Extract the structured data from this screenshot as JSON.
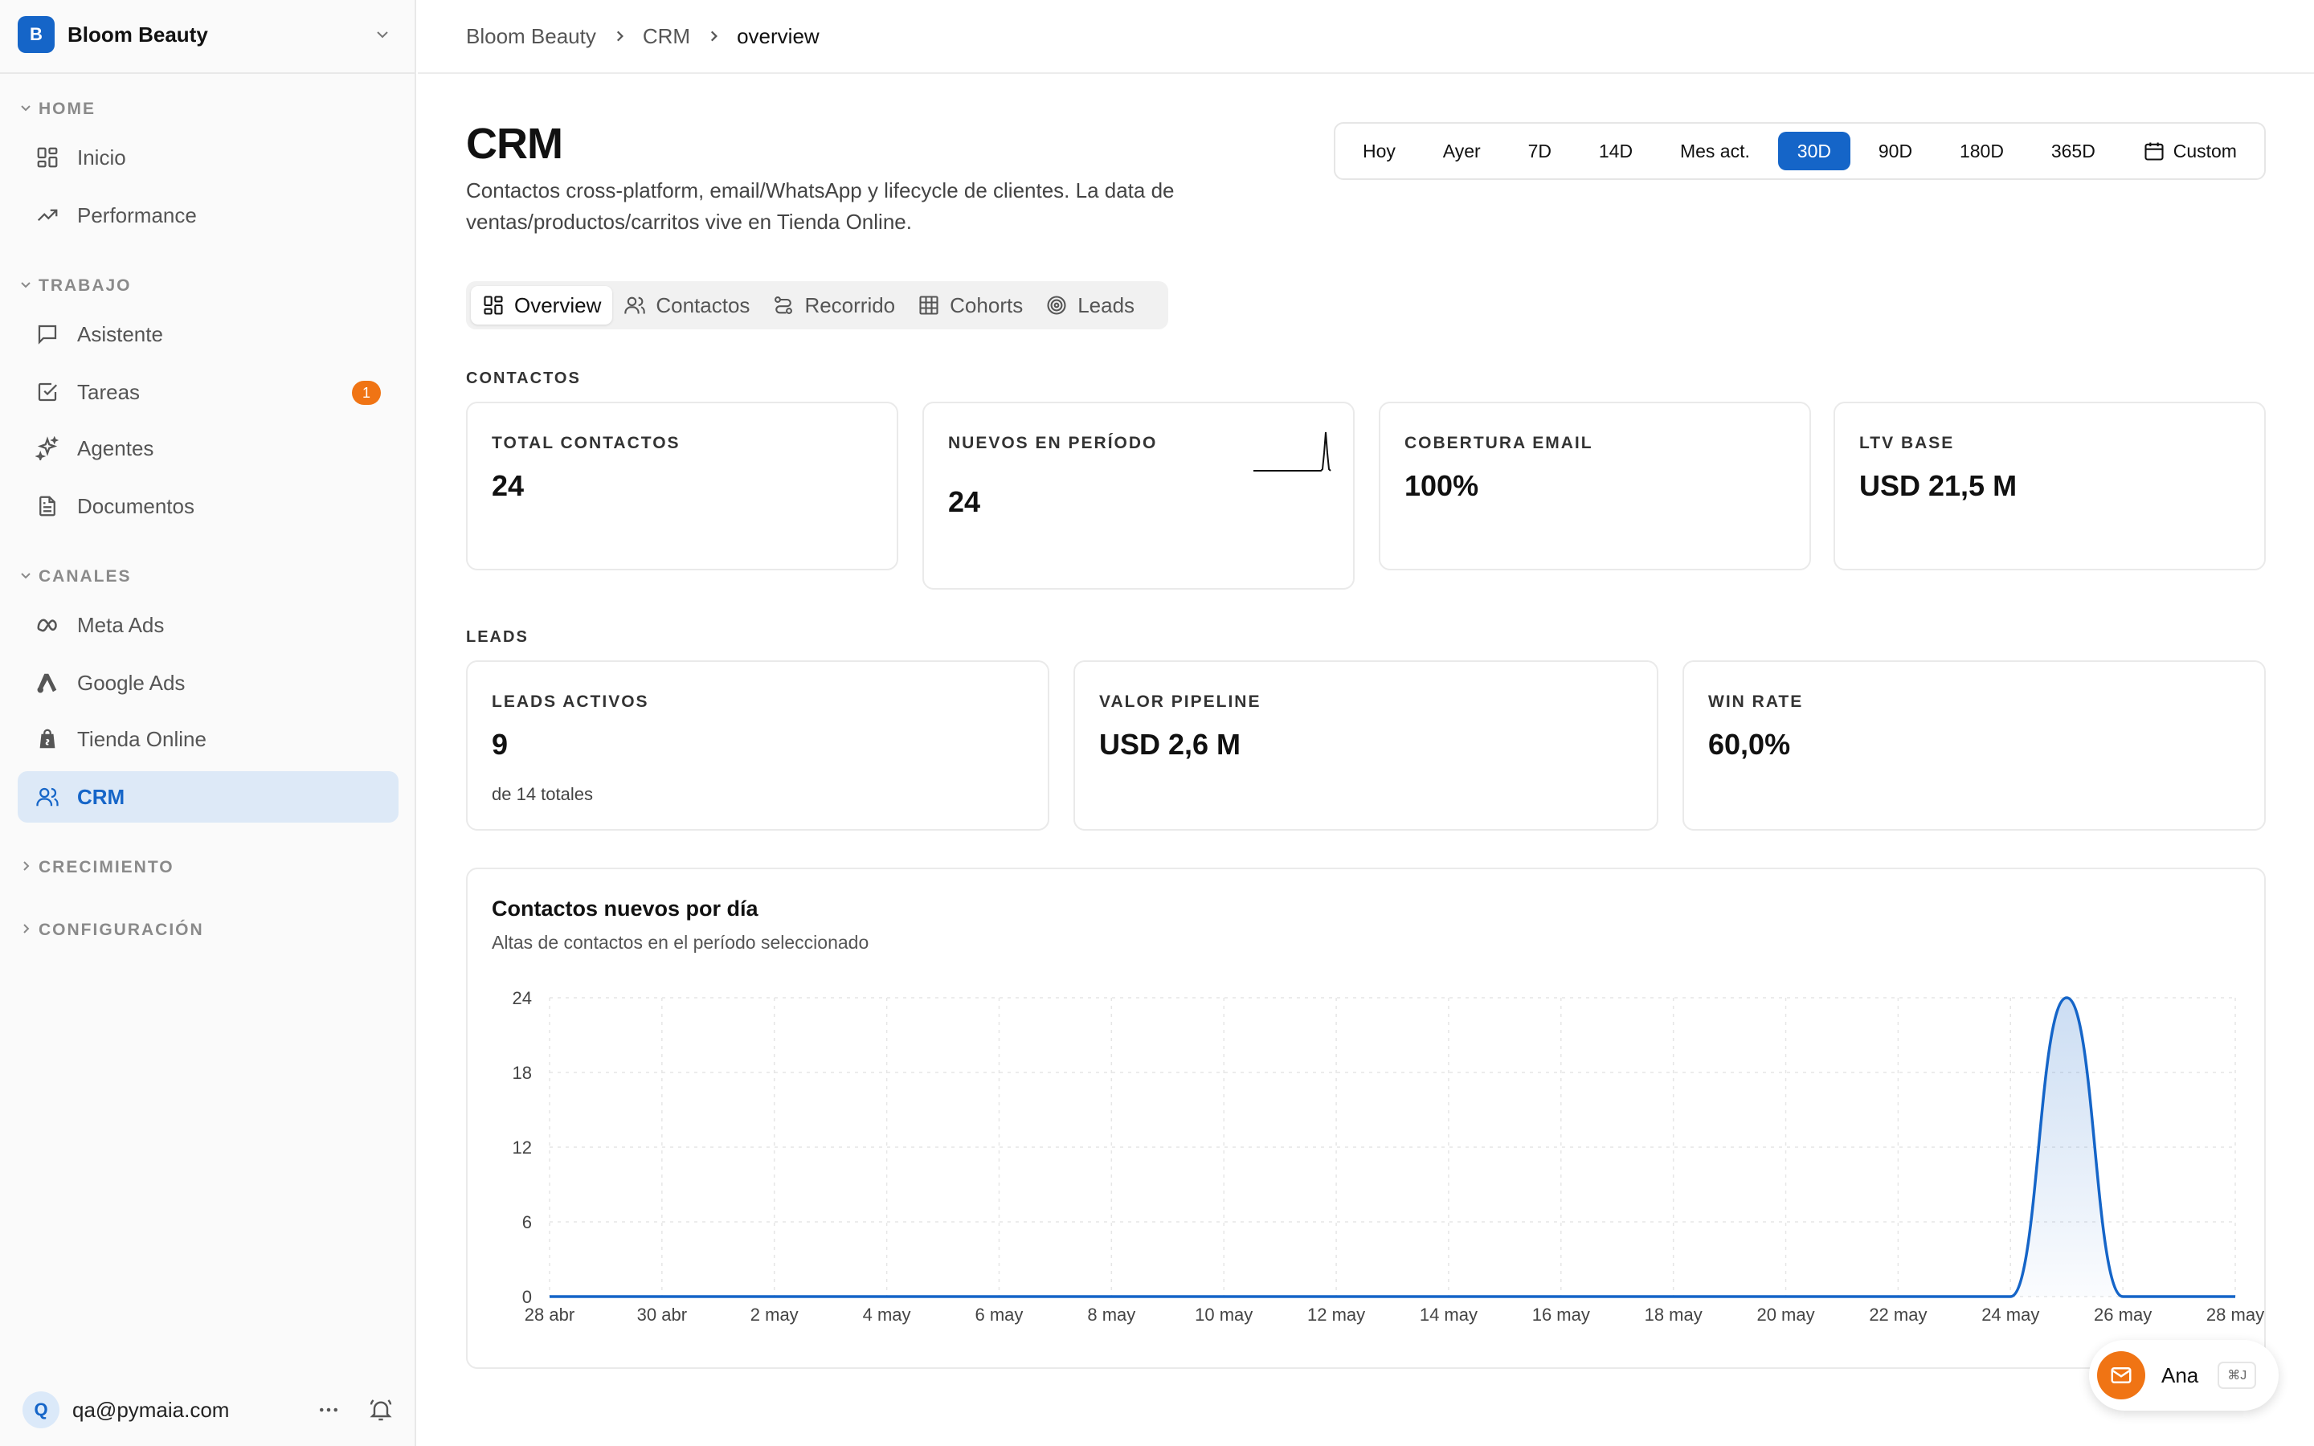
{
  "org": {
    "initial": "B",
    "name": "Bloom Beauty"
  },
  "sidebar": {
    "sections": {
      "home": "HOME",
      "trabajo": "TRABAJO",
      "canales": "CANALES",
      "crecimiento": "CRECIMIENTO",
      "configuracion": "CONFIGURACIÓN"
    },
    "items": {
      "inicio": "Inicio",
      "performance": "Performance",
      "asistente": "Asistente",
      "tareas": "Tareas",
      "tareas_badge": "1",
      "agentes": "Agentes",
      "documentos": "Documentos",
      "meta_ads": "Meta Ads",
      "google_ads": "Google Ads",
      "tienda_online": "Tienda Online",
      "crm": "CRM"
    },
    "user": {
      "initial": "Q",
      "email": "qa@pymaia.com"
    }
  },
  "breadcrumb": [
    "Bloom Beauty",
    "CRM",
    "overview"
  ],
  "header": {
    "title": "CRM",
    "description": "Contactos cross-platform, email/WhatsApp y lifecycle de clientes. La data de ventas/productos/carritos vive en Tienda Online."
  },
  "date_range": {
    "options": [
      "Hoy",
      "Ayer",
      "7D",
      "14D",
      "Mes act.",
      "30D",
      "90D",
      "180D",
      "365D"
    ],
    "selected": "30D",
    "custom_label": "Custom"
  },
  "tabs": {
    "overview": "Overview",
    "contactos": "Contactos",
    "recorrido": "Recorrido",
    "cohorts": "Cohorts",
    "leads": "Leads",
    "active": "Overview"
  },
  "contactos": {
    "label": "CONTACTOS",
    "total": {
      "label": "TOTAL CONTACTOS",
      "value": "24"
    },
    "nuevos": {
      "label": "NUEVOS EN PERÍODO",
      "value": "24"
    },
    "cobertura": {
      "label": "COBERTURA EMAIL",
      "value": "100%"
    },
    "ltv": {
      "label": "LTV BASE",
      "value": "USD 21,5 M"
    }
  },
  "leads": {
    "label": "LEADS",
    "activos": {
      "label": "LEADS ACTIVOS",
      "value": "9",
      "sub": "de 14 totales"
    },
    "pipeline": {
      "label": "VALOR PIPELINE",
      "value": "USD 2,6 M"
    },
    "win_rate": {
      "label": "WIN RATE",
      "value": "60,0%"
    }
  },
  "chart": {
    "title": "Contactos nuevos por día",
    "subtitle": "Altas de contactos en el período seleccionado"
  },
  "chart_data": {
    "type": "area",
    "title": "Contactos nuevos por día",
    "subtitle": "Altas de contactos en el período seleccionado",
    "x": [
      "28 abr",
      "29 abr",
      "30 abr",
      "1 may",
      "2 may",
      "3 may",
      "4 may",
      "5 may",
      "6 may",
      "7 may",
      "8 may",
      "9 may",
      "10 may",
      "11 may",
      "12 may",
      "13 may",
      "14 may",
      "15 may",
      "16 may",
      "17 may",
      "18 may",
      "19 may",
      "20 may",
      "21 may",
      "22 may",
      "23 may",
      "24 may",
      "25 may",
      "26 may",
      "27 may",
      "28 may"
    ],
    "x_tick_labels": [
      "28 abr",
      "30 abr",
      "2 may",
      "4 may",
      "6 may",
      "8 may",
      "10 may",
      "12 may",
      "14 may",
      "16 may",
      "18 may",
      "20 may",
      "22 may",
      "24 may",
      "26 may",
      "28 may"
    ],
    "series": [
      {
        "values": [
          0,
          0,
          0,
          0,
          0,
          0,
          0,
          0,
          0,
          0,
          0,
          0,
          0,
          0,
          0,
          0,
          0,
          0,
          0,
          0,
          0,
          0,
          0,
          0,
          0,
          0,
          0,
          24,
          0,
          0,
          0
        ]
      }
    ],
    "y_ticks": [
      0,
      6,
      12,
      18,
      24
    ],
    "ylim": [
      0,
      24
    ],
    "grid": true,
    "color": "#1565c8"
  },
  "assistant": {
    "name": "Ana",
    "shortcut": "⌘J"
  }
}
